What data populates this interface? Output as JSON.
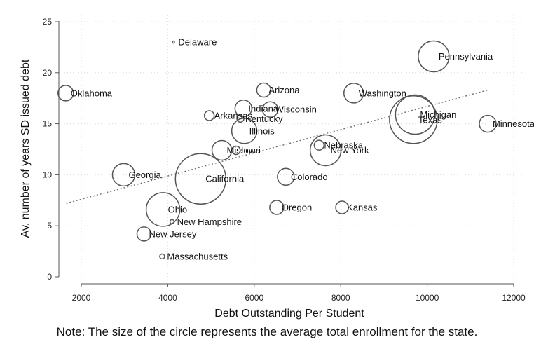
{
  "chart_data": {
    "type": "scatter",
    "xlabel": "Debt Outstanding Per Student",
    "ylabel": "Av. number of years SD issued debt",
    "xlim": [
      1500,
      12000
    ],
    "ylim": [
      0,
      25
    ],
    "xticks": [
      2000,
      4000,
      6000,
      8000,
      10000,
      12000
    ],
    "yticks": [
      0,
      5,
      10,
      15,
      20,
      25
    ],
    "grid": true,
    "fit_line": {
      "from": [
        1650,
        7.2
      ],
      "to": [
        11400,
        18.3
      ],
      "style": "dotted"
    },
    "points": [
      {
        "label": "Delaware",
        "x": 4130,
        "y": 23.0,
        "r": 1.5
      },
      {
        "label": "Pennsylvania",
        "x": 10150,
        "y": 21.6,
        "r": 22
      },
      {
        "label": "Oklahoma",
        "x": 1640,
        "y": 18.0,
        "r": 11
      },
      {
        "label": "Arizona",
        "x": 6220,
        "y": 18.3,
        "r": 10
      },
      {
        "label": "Washington",
        "x": 8300,
        "y": 18.0,
        "r": 14
      },
      {
        "label": "Indiana",
        "x": 5750,
        "y": 16.5,
        "r": 12
      },
      {
        "label": "Wisconsin",
        "x": 6370,
        "y": 16.4,
        "r": 11
      },
      {
        "label": "Arkansas",
        "x": 4960,
        "y": 15.8,
        "r": 7
      },
      {
        "label": "Kentucky",
        "x": 5680,
        "y": 15.5,
        "r": 5
      },
      {
        "label": "Michigan",
        "x": 9720,
        "y": 15.9,
        "r": 28
      },
      {
        "label": "Texas",
        "x": 9680,
        "y": 15.4,
        "r": 34
      },
      {
        "label": "Minnesota",
        "x": 11400,
        "y": 15.0,
        "r": 12
      },
      {
        "label": "Illinois",
        "x": 5770,
        "y": 14.3,
        "r": 18
      },
      {
        "label": "Nebraska",
        "x": 7500,
        "y": 12.9,
        "r": 7
      },
      {
        "label": "New York",
        "x": 7650,
        "y": 12.4,
        "r": 22
      },
      {
        "label": "Missouri",
        "x": 5250,
        "y": 12.4,
        "r": 14
      },
      {
        "label": "Iowa",
        "x": 5580,
        "y": 12.4,
        "r": 6
      },
      {
        "label": "Georgia",
        "x": 2980,
        "y": 10.0,
        "r": 16
      },
      {
        "label": "California",
        "x": 4760,
        "y": 9.6,
        "r": 36
      },
      {
        "label": "Colorado",
        "x": 6730,
        "y": 9.8,
        "r": 12
      },
      {
        "label": "Oregon",
        "x": 6520,
        "y": 6.8,
        "r": 10
      },
      {
        "label": "Kansas",
        "x": 8030,
        "y": 6.8,
        "r": 9
      },
      {
        "label": "Ohio",
        "x": 3890,
        "y": 6.6,
        "r": 24
      },
      {
        "label": "New Hampshire",
        "x": 4100,
        "y": 5.4,
        "r": 3
      },
      {
        "label": "New Jersey",
        "x": 3450,
        "y": 4.2,
        "r": 10
      },
      {
        "label": "Massachusetts",
        "x": 3870,
        "y": 2.0,
        "r": 3.5
      }
    ]
  },
  "note": "Note: The size of the circle represents the average total enrollment for the state."
}
